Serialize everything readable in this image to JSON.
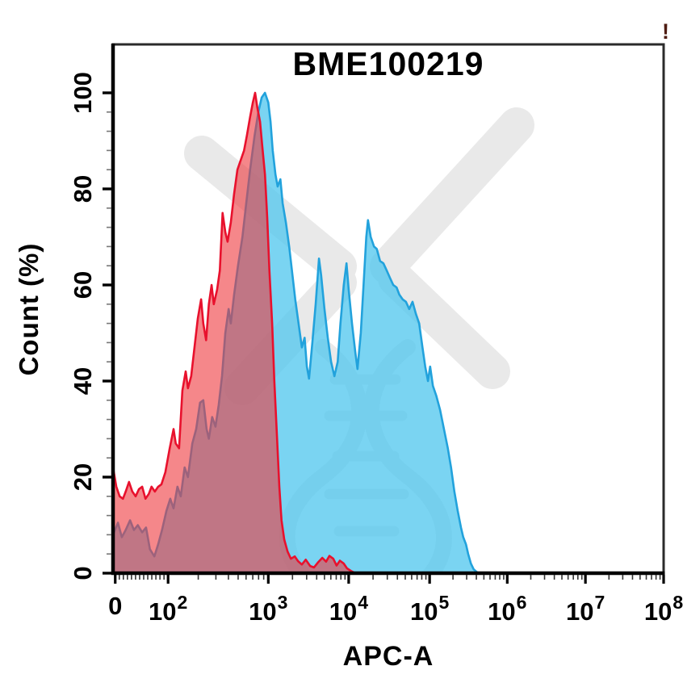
{
  "status_icon": {
    "glyph": "!",
    "color": "#4e1c12"
  },
  "chart_data": {
    "type": "area",
    "subtype": "flow-cytometry-histogram-overlay",
    "title": "BME100219",
    "xlabel": "APC-A",
    "ylabel": "Count (%)",
    "x_scale": "logicle",
    "grid": false,
    "legend": "none",
    "ylim": [
      0,
      110
    ],
    "y_ticks": {
      "values": [
        0,
        20,
        40,
        60,
        80,
        100
      ],
      "labels": [
        "0",
        "20",
        "40",
        "60",
        "80",
        "100"
      ],
      "minor_step": 4
    },
    "x_ticks": [
      {
        "label": "0",
        "exp": "",
        "pos": 0.004
      },
      {
        "label": "10",
        "exp": "2",
        "pos": 0.1
      },
      {
        "label": "10",
        "exp": "3",
        "pos": 0.282
      },
      {
        "label": "10",
        "exp": "4",
        "pos": 0.428
      },
      {
        "label": "10",
        "exp": "5",
        "pos": 0.575
      },
      {
        "label": "10",
        "exp": "6",
        "pos": 0.716
      },
      {
        "label": "10",
        "exp": "7",
        "pos": 0.858
      },
      {
        "label": "10",
        "exp": "8",
        "pos": 1.0
      }
    ],
    "x_minor_first_gap": 12,
    "colors": {
      "red_fill": "rgba(238,55,60,0.6)",
      "red_stroke": "#e8112d",
      "blue_fill": "rgba(85,200,238,0.78)",
      "blue_stroke": "#22a2dc",
      "frame": "#2b2b2b",
      "spine": "#000000",
      "tick_major": "#000000",
      "tick_minor_x": "#333333",
      "tick_minor_y": "#777777",
      "watermark": "#e9e9e9"
    },
    "series": [
      {
        "name": "blue-sample",
        "color_fill": "rgba(85,200,238,0.78)",
        "color_stroke": "#22a2dc",
        "x_unit": "fraction-of-x-axis",
        "y_unit": "count-percent",
        "points": [
          [
            0.0,
            8
          ],
          [
            0.009,
            10.5
          ],
          [
            0.016,
            7.5
          ],
          [
            0.023,
            9
          ],
          [
            0.031,
            11
          ],
          [
            0.038,
            9
          ],
          [
            0.045,
            10
          ],
          [
            0.053,
            8.5
          ],
          [
            0.06,
            9.5
          ],
          [
            0.067,
            5
          ],
          [
            0.075,
            3.5
          ],
          [
            0.082,
            6
          ],
          [
            0.089,
            9
          ],
          [
            0.097,
            13
          ],
          [
            0.104,
            15.5
          ],
          [
            0.11,
            13.5
          ],
          [
            0.117,
            18
          ],
          [
            0.123,
            16
          ],
          [
            0.13,
            22
          ],
          [
            0.136,
            20
          ],
          [
            0.144,
            27
          ],
          [
            0.151,
            30
          ],
          [
            0.158,
            35.5
          ],
          [
            0.164,
            36
          ],
          [
            0.17,
            30
          ],
          [
            0.174,
            28
          ],
          [
            0.18,
            32.5
          ],
          [
            0.186,
            30.5
          ],
          [
            0.192,
            35
          ],
          [
            0.198,
            41
          ],
          [
            0.204,
            50
          ],
          [
            0.21,
            55
          ],
          [
            0.214,
            52
          ],
          [
            0.22,
            58
          ],
          [
            0.227,
            64
          ],
          [
            0.235,
            70
          ],
          [
            0.242,
            77
          ],
          [
            0.249,
            84
          ],
          [
            0.257,
            91
          ],
          [
            0.264,
            96
          ],
          [
            0.27,
            99
          ],
          [
            0.276,
            100
          ],
          [
            0.282,
            98
          ],
          [
            0.286,
            94
          ],
          [
            0.29,
            88
          ],
          [
            0.295,
            83
          ],
          [
            0.299,
            80.5
          ],
          [
            0.304,
            82
          ],
          [
            0.308,
            77
          ],
          [
            0.314,
            73
          ],
          [
            0.32,
            68
          ],
          [
            0.326,
            62
          ],
          [
            0.331,
            57
          ],
          [
            0.337,
            52
          ],
          [
            0.343,
            47
          ],
          [
            0.348,
            49
          ],
          [
            0.352,
            43
          ],
          [
            0.356,
            40.5
          ],
          [
            0.362,
            48
          ],
          [
            0.368,
            56
          ],
          [
            0.374,
            65.5
          ],
          [
            0.378,
            62
          ],
          [
            0.384,
            55
          ],
          [
            0.39,
            49
          ],
          [
            0.396,
            44
          ],
          [
            0.402,
            41
          ],
          [
            0.408,
            44
          ],
          [
            0.413,
            52
          ],
          [
            0.419,
            60
          ],
          [
            0.424,
            64.5
          ],
          [
            0.428,
            59
          ],
          [
            0.434,
            52
          ],
          [
            0.44,
            46
          ],
          [
            0.444,
            42.5
          ],
          [
            0.45,
            50
          ],
          [
            0.456,
            62
          ],
          [
            0.46,
            70
          ],
          [
            0.463,
            73.5
          ],
          [
            0.468,
            70
          ],
          [
            0.474,
            68
          ],
          [
            0.479,
            67.5
          ],
          [
            0.485,
            65
          ],
          [
            0.491,
            64.5
          ],
          [
            0.497,
            63
          ],
          [
            0.503,
            61.5
          ],
          [
            0.509,
            60
          ],
          [
            0.515,
            59.5
          ],
          [
            0.52,
            58
          ],
          [
            0.526,
            57
          ],
          [
            0.532,
            56.5
          ],
          [
            0.538,
            55
          ],
          [
            0.544,
            56.5
          ],
          [
            0.55,
            54
          ],
          [
            0.556,
            52
          ],
          [
            0.562,
            47
          ],
          [
            0.567,
            43
          ],
          [
            0.572,
            40
          ],
          [
            0.576,
            43
          ],
          [
            0.581,
            39
          ],
          [
            0.587,
            37
          ],
          [
            0.594,
            34
          ],
          [
            0.601,
            30
          ],
          [
            0.608,
            26
          ],
          [
            0.614,
            22
          ],
          [
            0.62,
            17
          ],
          [
            0.626,
            13
          ],
          [
            0.632,
            9.5
          ],
          [
            0.636,
            7.5
          ],
          [
            0.641,
            6
          ],
          [
            0.645,
            4
          ],
          [
            0.65,
            2
          ],
          [
            0.655,
            0.8
          ],
          [
            0.663,
            0
          ]
        ]
      },
      {
        "name": "red-control",
        "color_fill": "rgba(238,55,60,0.6)",
        "color_stroke": "#e8112d",
        "x_unit": "fraction-of-x-axis",
        "y_unit": "count-percent",
        "points": [
          [
            0.0,
            22
          ],
          [
            0.006,
            18
          ],
          [
            0.012,
            16
          ],
          [
            0.018,
            15.5
          ],
          [
            0.023,
            17
          ],
          [
            0.029,
            19
          ],
          [
            0.035,
            17
          ],
          [
            0.041,
            16
          ],
          [
            0.047,
            17.5
          ],
          [
            0.053,
            18
          ],
          [
            0.059,
            15.5
          ],
          [
            0.065,
            16.5
          ],
          [
            0.07,
            18
          ],
          [
            0.076,
            17
          ],
          [
            0.082,
            18
          ],
          [
            0.088,
            18.5
          ],
          [
            0.095,
            21
          ],
          [
            0.103,
            26
          ],
          [
            0.11,
            30
          ],
          [
            0.114,
            27
          ],
          [
            0.12,
            26
          ],
          [
            0.126,
            38
          ],
          [
            0.132,
            42
          ],
          [
            0.136,
            38.5
          ],
          [
            0.142,
            41
          ],
          [
            0.148,
            47
          ],
          [
            0.154,
            53
          ],
          [
            0.16,
            57
          ],
          [
            0.164,
            52
          ],
          [
            0.169,
            48.5
          ],
          [
            0.174,
            56
          ],
          [
            0.179,
            60
          ],
          [
            0.183,
            56
          ],
          [
            0.189,
            59
          ],
          [
            0.194,
            63
          ],
          [
            0.199,
            75
          ],
          [
            0.204,
            71
          ],
          [
            0.208,
            69
          ],
          [
            0.214,
            73
          ],
          [
            0.22,
            79
          ],
          [
            0.226,
            84
          ],
          [
            0.232,
            86
          ],
          [
            0.238,
            88
          ],
          [
            0.243,
            91
          ],
          [
            0.249,
            95
          ],
          [
            0.254,
            98
          ],
          [
            0.258,
            100
          ],
          [
            0.262,
            97
          ],
          [
            0.267,
            94
          ],
          [
            0.271,
            89
          ],
          [
            0.276,
            83
          ],
          [
            0.28,
            74
          ],
          [
            0.284,
            63
          ],
          [
            0.289,
            52
          ],
          [
            0.293,
            40
          ],
          [
            0.298,
            28
          ],
          [
            0.302,
            18
          ],
          [
            0.306,
            11
          ],
          [
            0.311,
            7
          ],
          [
            0.317,
            4.5
          ],
          [
            0.323,
            3
          ],
          [
            0.33,
            3.5
          ],
          [
            0.336,
            2.5
          ],
          [
            0.343,
            1.8
          ],
          [
            0.35,
            2.8
          ],
          [
            0.358,
            1.5
          ],
          [
            0.365,
            1.2
          ],
          [
            0.372,
            2.2
          ],
          [
            0.38,
            3.2
          ],
          [
            0.387,
            2.4
          ],
          [
            0.393,
            3.6
          ],
          [
            0.4,
            3.0
          ],
          [
            0.406,
            1.6
          ],
          [
            0.412,
            2.6
          ],
          [
            0.419,
            2.0
          ],
          [
            0.425,
            1.0
          ],
          [
            0.433,
            0.4
          ],
          [
            0.44,
            0
          ]
        ]
      }
    ]
  }
}
